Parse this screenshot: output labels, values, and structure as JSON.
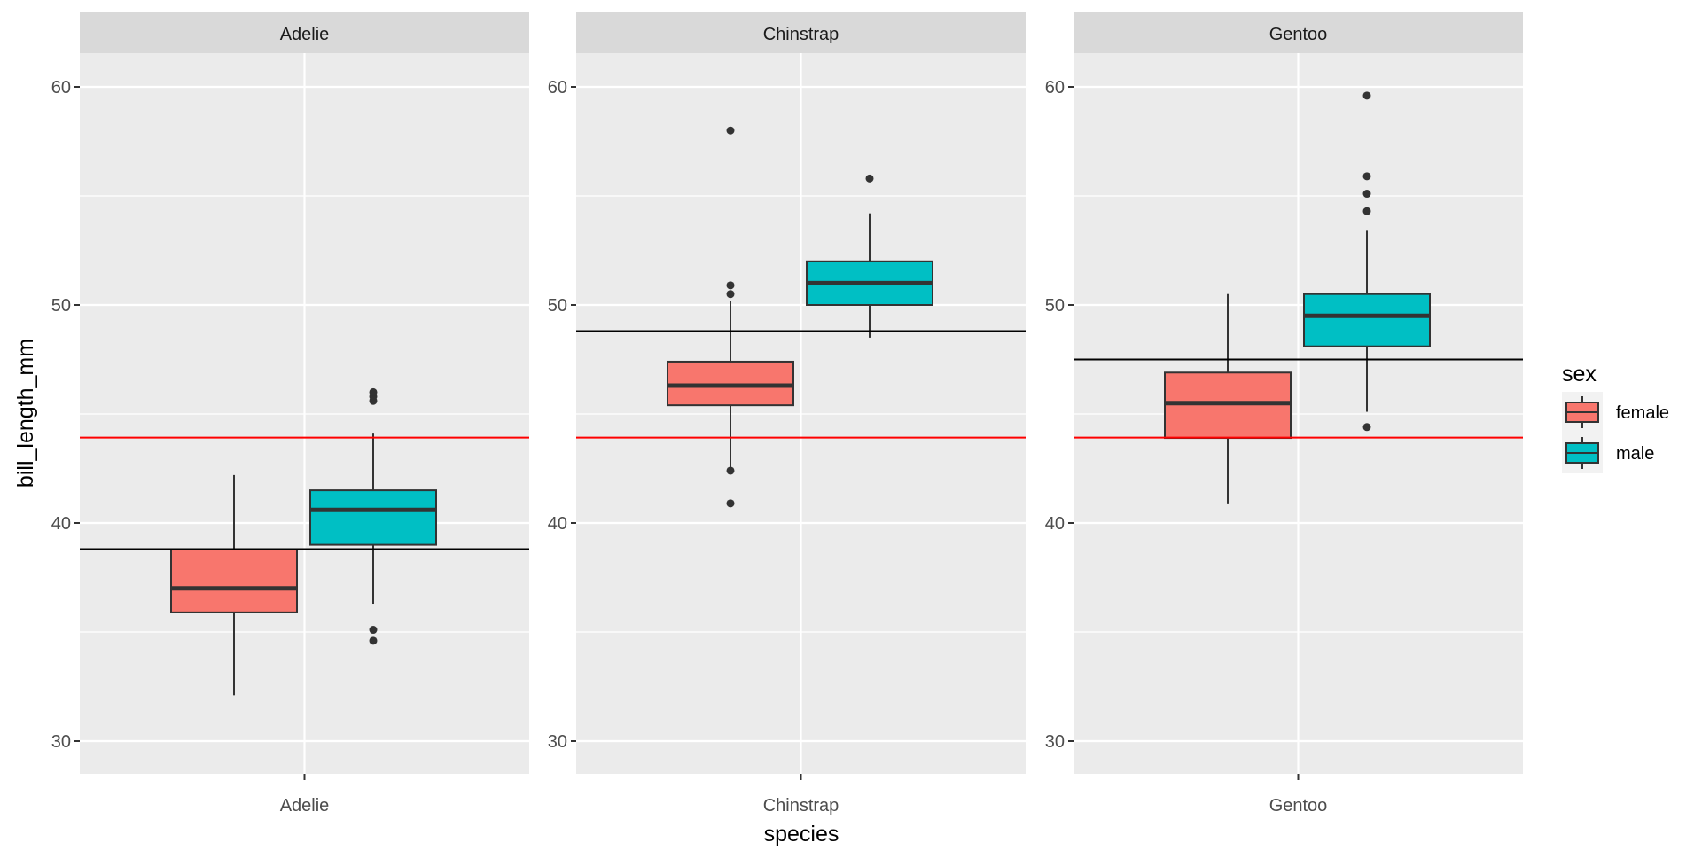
{
  "chart_data": {
    "type": "boxplot",
    "title": "",
    "xlabel": "species",
    "ylabel": "bill_length_mm",
    "ylim": [
      28.5,
      61.5
    ],
    "yticks": [
      30,
      40,
      50,
      60
    ],
    "grid": true,
    "facets": [
      "Adelie",
      "Chinstrap",
      "Gentoo"
    ],
    "legend": {
      "title": "sex",
      "position": "right",
      "entries": [
        {
          "name": "female",
          "color": "#F8766D"
        },
        {
          "name": "male",
          "color": "#00BFC4"
        }
      ]
    },
    "reference_lines": {
      "overall_mean": {
        "value": 43.92,
        "color": "#FF0000"
      },
      "species_means": [
        {
          "facet": "Adelie",
          "value": 38.8,
          "color": "#000000"
        },
        {
          "facet": "Chinstrap",
          "value": 48.8,
          "color": "#000000"
        },
        {
          "facet": "Gentoo",
          "value": 47.5,
          "color": "#000000"
        }
      ]
    },
    "boxes": [
      {
        "facet": "Adelie",
        "group": "female",
        "lower_whisker": 32.1,
        "q1": 35.9,
        "median": 37.0,
        "q3": 38.8,
        "upper_whisker": 42.2,
        "outliers": []
      },
      {
        "facet": "Adelie",
        "group": "male",
        "lower_whisker": 36.3,
        "q1": 39.0,
        "median": 40.6,
        "q3": 41.5,
        "upper_whisker": 44.1,
        "outliers": [
          34.6,
          35.1,
          45.6,
          45.8,
          46.0
        ]
      },
      {
        "facet": "Chinstrap",
        "group": "female",
        "lower_whisker": 42.5,
        "q1": 45.4,
        "median": 46.3,
        "q3": 47.4,
        "upper_whisker": 50.2,
        "outliers": [
          40.9,
          42.4,
          50.5,
          50.9,
          58.0
        ]
      },
      {
        "facet": "Chinstrap",
        "group": "male",
        "lower_whisker": 48.5,
        "q1": 50.0,
        "median": 51.0,
        "q3": 52.0,
        "upper_whisker": 54.2,
        "outliers": [
          55.8
        ]
      },
      {
        "facet": "Gentoo",
        "group": "female",
        "lower_whisker": 40.9,
        "q1": 43.9,
        "median": 45.5,
        "q3": 46.9,
        "upper_whisker": 50.5,
        "outliers": []
      },
      {
        "facet": "Gentoo",
        "group": "male",
        "lower_whisker": 45.1,
        "q1": 48.1,
        "median": 49.5,
        "q3": 50.5,
        "upper_whisker": 53.4,
        "outliers": [
          44.4,
          54.3,
          55.1,
          55.9,
          59.6
        ]
      }
    ]
  },
  "colors": {
    "panel_bg": "#EBEBEB",
    "strip_bg": "#D9D9D9",
    "grid": "#FFFFFF",
    "box_line": "#333333"
  }
}
